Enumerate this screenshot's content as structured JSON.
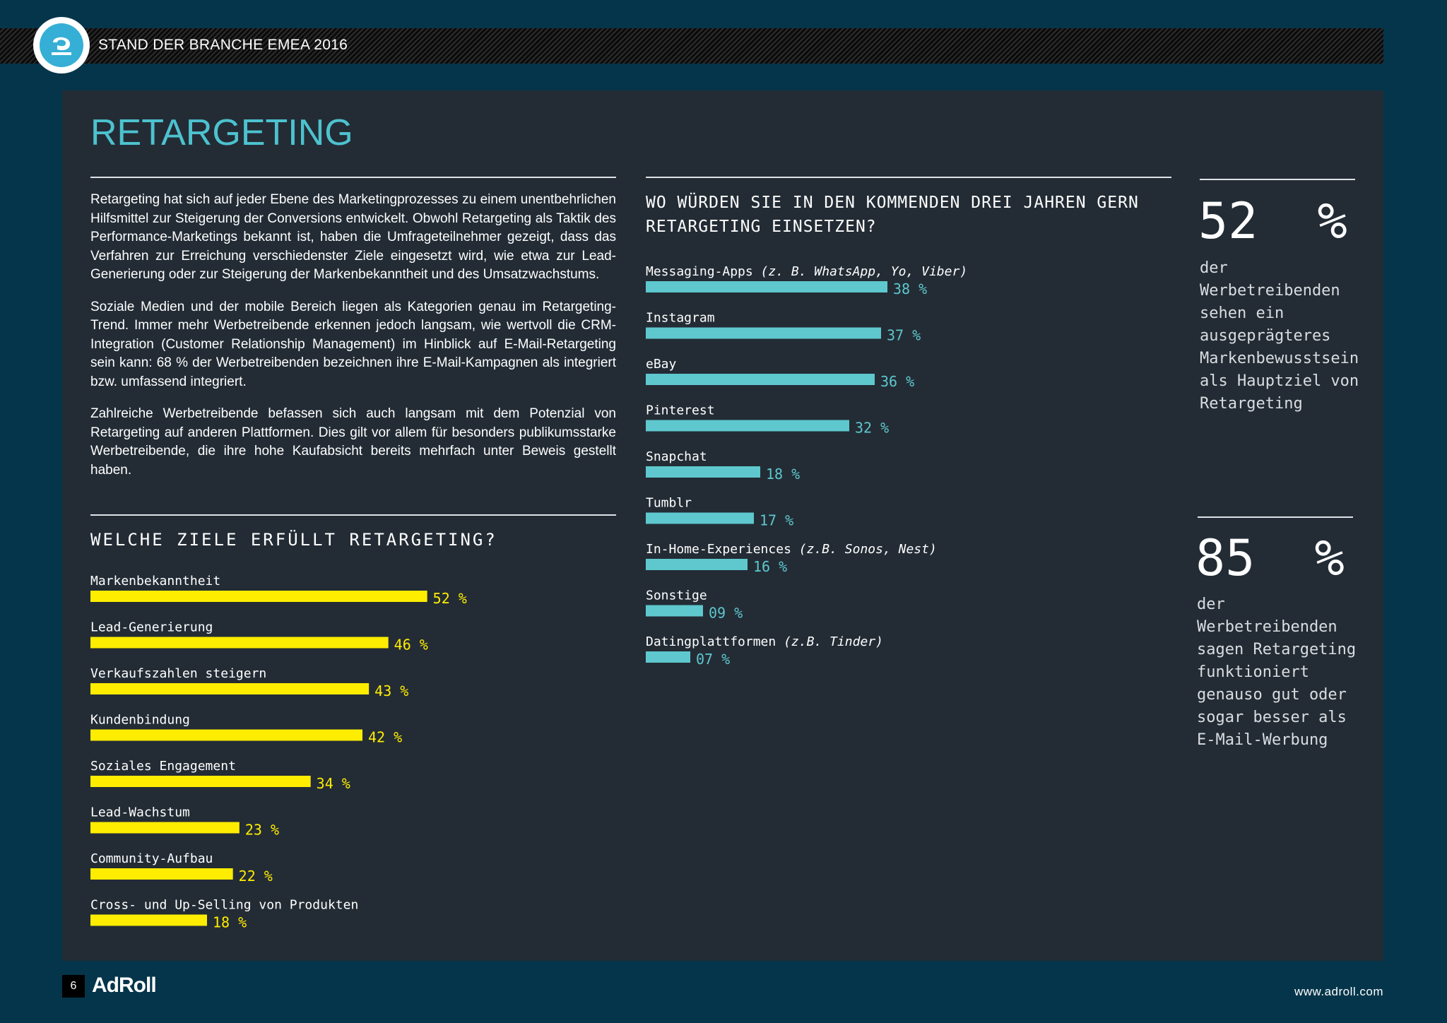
{
  "header": {
    "title": "STAND DER BRANCHE EMEA 2016"
  },
  "section": {
    "title": "RETARGETING"
  },
  "intro": {
    "paragraphs": [
      "Retargeting hat sich auf jeder Ebene des Marketingprozesses zu einem unentbehrlichen Hilfsmittel zur Steigerung der Conversions entwickelt. Obwohl Retargeting als Taktik des Performance-Marketings bekannt ist, haben die Umfrageteilnehmer gezeigt, dass das Verfahren zur Erreichung verschiedenster Ziele eingesetzt wird, wie etwa zur Lead-Generierung oder zur Steigerung der Markenbekanntheit und des Umsatzwachstums.",
      "Soziale Medien und der mobile Bereich liegen als Kategorien genau im Retargeting-Trend. Immer mehr Werbetreibende erkennen jedoch langsam, wie wertvoll die CRM-Integration (Customer Relationship Management) im Hinblick auf E-Mail-Retargeting sein kann: 68 % der Werbetreibenden bezeichnen ihre E-Mail-Kampagnen als integriert bzw. umfassend integriert.",
      "Zahlreiche Werbetreibende befassen sich auch langsam mit dem Potenzial von Retargeting auf anderen Plattformen. Dies gilt vor allem für besonders publikumsstarke Werbetreibende, die ihre hohe Kaufabsicht bereits mehrfach unter Beweis gestellt haben."
    ]
  },
  "chart_data": [
    {
      "type": "bar",
      "orientation": "horizontal",
      "title": "WELCHE ZIELE ERFÜLLT RETARGETING?",
      "categories": [
        "Markenbekanntheit",
        "Lead-Generierung",
        "Verkaufszahlen steigern",
        "Kundenbindung",
        "Soziales Engagement",
        "Lead-Wachstum",
        "Community-Aufbau",
        "Cross- und Up-Selling von Produkten"
      ],
      "category_hints": [
        "",
        "",
        "",
        "",
        "",
        "",
        "",
        ""
      ],
      "values": [
        52,
        46,
        43,
        42,
        34,
        23,
        22,
        18
      ],
      "value_labels": [
        "52 %",
        "46 %",
        "43 %",
        "42 %",
        "34 %",
        "23 %",
        "22 %",
        "18 %"
      ],
      "unit": "%",
      "xlim": [
        0,
        60
      ],
      "color": "#ffed00",
      "label_color": "#ffed00",
      "grid": false,
      "legend": "none"
    },
    {
      "type": "bar",
      "orientation": "horizontal",
      "title": "WO WÜRDEN SIE IN DEN KOMMENDEN DREI JAHREN GERN RETARGETING EINSETZEN?",
      "categories": [
        "Messaging-Apps",
        "Instagram",
        "eBay",
        "Pinterest",
        "Snapchat",
        "Tumblr",
        "In-Home-Experiences",
        "Sonstige",
        "Datingplattformen"
      ],
      "category_hints": [
        "(z. B. WhatsApp, Yo, Viber)",
        "",
        "",
        "",
        "",
        "",
        "(z.B. Sonos, Nest)",
        "",
        "(z.B. Tinder)"
      ],
      "values": [
        38,
        37,
        36,
        32,
        18,
        17,
        16,
        9,
        7
      ],
      "value_labels": [
        "38 %",
        "37 %",
        "36 %",
        "32 %",
        "18 %",
        "17 %",
        "16 %",
        "09 %",
        "07 %"
      ],
      "unit": "%",
      "xlim": [
        0,
        60
      ],
      "color": "#5ec8ce",
      "label_color": "#5ec8ce",
      "grid": false,
      "legend": "none"
    }
  ],
  "stats": [
    {
      "value": "52  %",
      "text": "der Werbetreibenden sehen ein ausgeprägteres Markenbewusstsein als Hauptziel von Retargeting"
    },
    {
      "value": "85  %",
      "text": "der Werbetreibenden sagen Retargeting funktioniert genauso gut oder sogar besser als E-Mail-Werbung"
    }
  ],
  "footer": {
    "page_number": "6",
    "brand": "AdRoll",
    "url": "www.adroll.com"
  },
  "colors": {
    "background": "#05354a",
    "panel": "#232c35",
    "accent": "#4dc2cf",
    "goals_bar": "#ffed00",
    "platforms_bar": "#5ec8ce"
  }
}
